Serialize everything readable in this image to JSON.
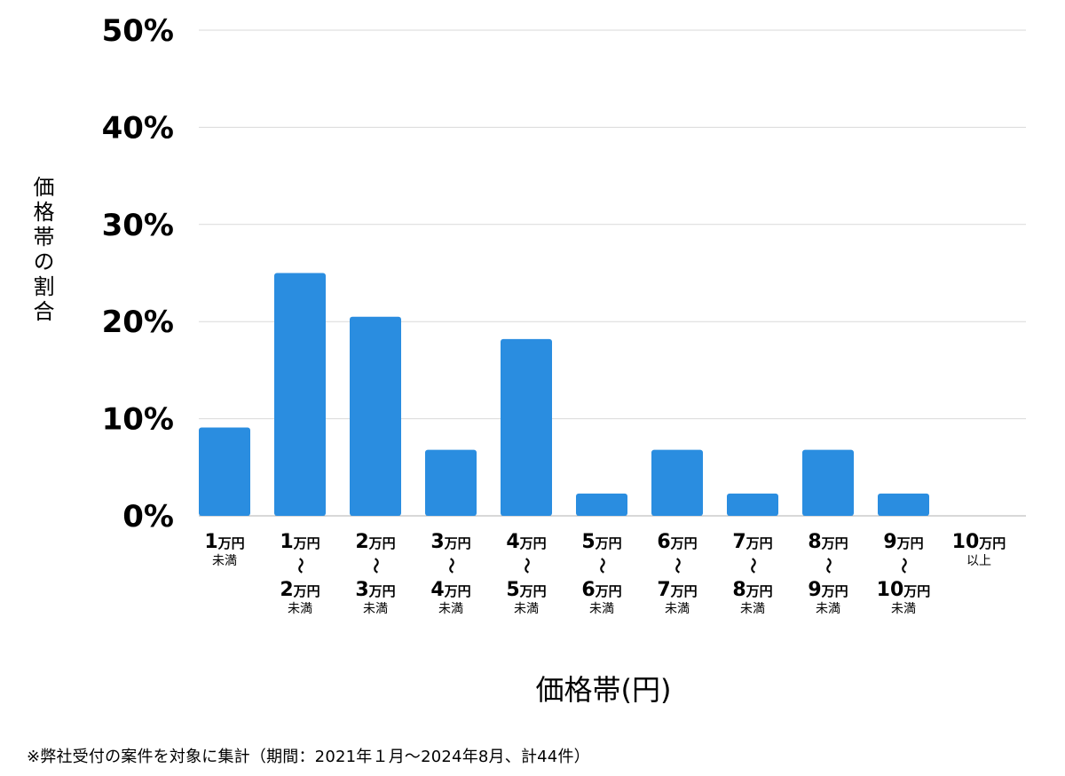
{
  "chart_data": {
    "type": "bar",
    "xlabel": "価格帯(円)",
    "ylabel": "価格帯の割合",
    "ylim": [
      0,
      50
    ],
    "yticks": [
      "0%",
      "10%",
      "20%",
      "30%",
      "40%",
      "50%"
    ],
    "grid": true,
    "bar_color": "#2a8de0",
    "categories": [
      {
        "top": "1万円",
        "sub": "未満"
      },
      {
        "top": "1万円",
        "mid": "〜",
        "bottom": "2万円",
        "sub": "未満"
      },
      {
        "top": "2万円",
        "mid": "〜",
        "bottom": "3万円",
        "sub": "未満"
      },
      {
        "top": "3万円",
        "mid": "〜",
        "bottom": "4万円",
        "sub": "未満"
      },
      {
        "top": "4万円",
        "mid": "〜",
        "bottom": "5万円",
        "sub": "未満"
      },
      {
        "top": "5万円",
        "mid": "〜",
        "bottom": "6万円",
        "sub": "未満"
      },
      {
        "top": "6万円",
        "mid": "〜",
        "bottom": "7万円",
        "sub": "未満"
      },
      {
        "top": "7万円",
        "mid": "〜",
        "bottom": "8万円",
        "sub": "未満"
      },
      {
        "top": "8万円",
        "mid": "〜",
        "bottom": "9万円",
        "sub": "未満"
      },
      {
        "top": "9万円",
        "mid": "〜",
        "bottom": "10万円",
        "sub": "未満"
      },
      {
        "top": "10万円",
        "sub": "以上"
      }
    ],
    "values": [
      9.1,
      25.0,
      20.5,
      6.8,
      18.2,
      2.3,
      6.8,
      2.3,
      6.8,
      2.3,
      0
    ]
  },
  "footnote": "※弊社受付の案件を対象に集計（期間：2021年１月〜2024年8月、計44件）"
}
